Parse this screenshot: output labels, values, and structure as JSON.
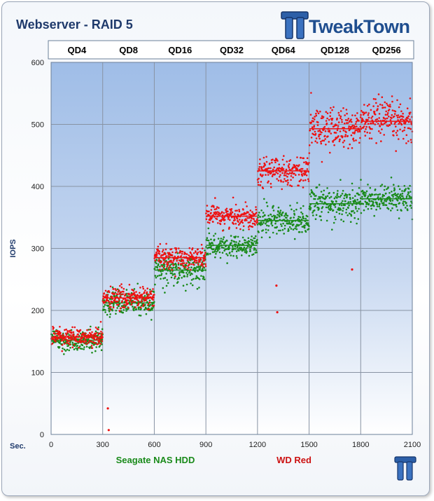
{
  "chart_data": {
    "type": "scatter",
    "title": "Webserver - RAID 5",
    "xlabel": "Sec.",
    "ylabel": "IOPS",
    "xlim": [
      0,
      2100
    ],
    "ylim": [
      0,
      600
    ],
    "x_ticks": [
      0,
      300,
      600,
      900,
      1200,
      1500,
      1800,
      2100
    ],
    "y_ticks": [
      0,
      100,
      200,
      300,
      400,
      500,
      600
    ],
    "grid": true,
    "legend_position": "bottom",
    "queue_depths": [
      {
        "label": "QD4",
        "start": 0,
        "end": 300
      },
      {
        "label": "QD8",
        "start": 300,
        "end": 600
      },
      {
        "label": "QD16",
        "start": 600,
        "end": 900
      },
      {
        "label": "QD32",
        "start": 900,
        "end": 1200
      },
      {
        "label": "QD64",
        "start": 1200,
        "end": 1500
      },
      {
        "label": "QD128",
        "start": 1500,
        "end": 1800
      },
      {
        "label": "QD256",
        "start": 1800,
        "end": 2100
      }
    ],
    "series": [
      {
        "name": "Seagate NAS HDD",
        "color": "#1a8a1a",
        "segment_means": [
          152,
          212,
          265,
          305,
          345,
          372,
          380
        ],
        "segment_spread": [
          8,
          10,
          12,
          10,
          12,
          14,
          12
        ]
      },
      {
        "name": "WD Red",
        "color": "#ee1111",
        "segment_means": [
          157,
          220,
          285,
          352,
          425,
          493,
          505
        ],
        "segment_spread": [
          7,
          9,
          9,
          9,
          11,
          17,
          16
        ],
        "outliers": [
          {
            "x": 330,
            "y": 42
          },
          {
            "x": 335,
            "y": 7
          },
          {
            "x": 1310,
            "y": 240
          },
          {
            "x": 1315,
            "y": 197
          },
          {
            "x": 1750,
            "y": 266
          }
        ]
      }
    ]
  },
  "brand": {
    "name": "TweakTown",
    "icon": "tt-logo-icon",
    "accent": "#1f4e8f"
  }
}
